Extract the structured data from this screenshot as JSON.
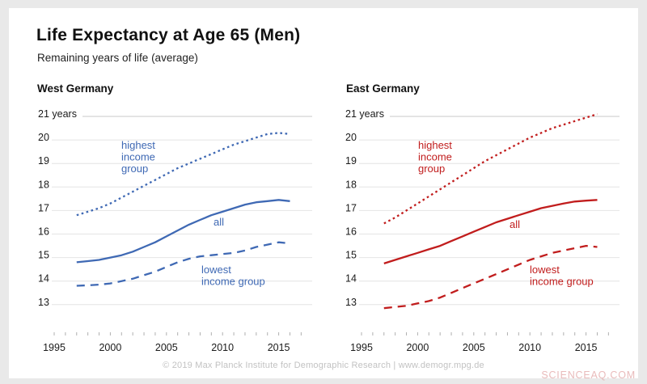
{
  "page": {
    "title": "Life Expectancy at Age 65 (Men)",
    "subtitle": "Remaining years of life (average)",
    "footer": "© 2019 Max Planck Institute for Demographic Research | www.demogr.mpg.de",
    "watermark": "SCIENCEAQ.COM"
  },
  "colors": {
    "west_line": "#3f69b4",
    "east_line": "#c11d1d",
    "grid": "#e4e4e4",
    "grid_top": "#c9c9c9",
    "minor_tick": "#b0b0b0",
    "axis_text": "#1a1a1a"
  },
  "axes": {
    "y_top_label": "21 years",
    "y_ticks": [
      21,
      20,
      19,
      18,
      17,
      16,
      15,
      14,
      13
    ],
    "ylim": [
      13,
      21
    ],
    "x_ticks": [
      1995,
      2000,
      2005,
      2010,
      2015
    ],
    "x_minor_from": 1995,
    "x_minor_to": 2017,
    "grid": "on",
    "legend_position": "inline-labels"
  },
  "chart_data": [
    {
      "type": "line",
      "panel": "West Germany",
      "color": "#3f69b4",
      "x_years": [
        1997,
        1998,
        1999,
        2000,
        2001,
        2002,
        2003,
        2004,
        2005,
        2006,
        2007,
        2008,
        2009,
        2010,
        2011,
        2012,
        2013,
        2014,
        2015,
        2016
      ],
      "ylim": [
        13,
        21
      ],
      "series": [
        {
          "name": "highest income group",
          "label_lines": [
            "highest",
            "income",
            "group"
          ],
          "style": "dotted",
          "values": [
            16.8,
            16.95,
            17.1,
            17.3,
            17.55,
            17.8,
            18.05,
            18.3,
            18.55,
            18.8,
            19.0,
            19.2,
            19.4,
            19.6,
            19.8,
            19.95,
            20.1,
            20.25,
            20.3,
            20.25
          ]
        },
        {
          "name": "all",
          "label_lines": [
            "all"
          ],
          "style": "solid",
          "values": [
            14.8,
            14.85,
            14.9,
            15.0,
            15.1,
            15.25,
            15.45,
            15.65,
            15.9,
            16.15,
            16.4,
            16.6,
            16.8,
            16.95,
            17.1,
            17.25,
            17.35,
            17.4,
            17.45,
            17.4
          ]
        },
        {
          "name": "lowest income group",
          "label_lines": [
            "lowest",
            "income group"
          ],
          "style": "dashed",
          "values": [
            13.8,
            13.82,
            13.85,
            13.9,
            14.0,
            14.1,
            14.25,
            14.4,
            14.6,
            14.8,
            14.95,
            15.05,
            15.1,
            15.15,
            15.2,
            15.3,
            15.45,
            15.55,
            15.65,
            15.6
          ]
        }
      ]
    },
    {
      "type": "line",
      "panel": "East Germany",
      "color": "#c11d1d",
      "x_years": [
        1997,
        1998,
        1999,
        2000,
        2001,
        2002,
        2003,
        2004,
        2005,
        2006,
        2007,
        2008,
        2009,
        2010,
        2011,
        2012,
        2013,
        2014,
        2015,
        2016
      ],
      "ylim": [
        13,
        21
      ],
      "series": [
        {
          "name": "highest income group",
          "label_lines": [
            "highest",
            "income",
            "group"
          ],
          "style": "dotted",
          "values": [
            16.45,
            16.7,
            17.0,
            17.3,
            17.6,
            17.9,
            18.2,
            18.5,
            18.8,
            19.1,
            19.35,
            19.6,
            19.85,
            20.1,
            20.3,
            20.5,
            20.65,
            20.8,
            20.95,
            21.1
          ]
        },
        {
          "name": "all",
          "label_lines": [
            "all"
          ],
          "style": "solid",
          "values": [
            14.75,
            14.9,
            15.05,
            15.2,
            15.35,
            15.5,
            15.7,
            15.9,
            16.1,
            16.3,
            16.5,
            16.65,
            16.8,
            16.95,
            17.1,
            17.2,
            17.3,
            17.38,
            17.42,
            17.45
          ]
        },
        {
          "name": "lowest income group",
          "label_lines": [
            "lowest",
            "income group"
          ],
          "style": "dashed",
          "values": [
            12.85,
            12.9,
            12.95,
            13.05,
            13.15,
            13.3,
            13.5,
            13.7,
            13.9,
            14.1,
            14.3,
            14.5,
            14.7,
            14.9,
            15.05,
            15.2,
            15.3,
            15.4,
            15.5,
            15.45
          ]
        }
      ]
    }
  ]
}
